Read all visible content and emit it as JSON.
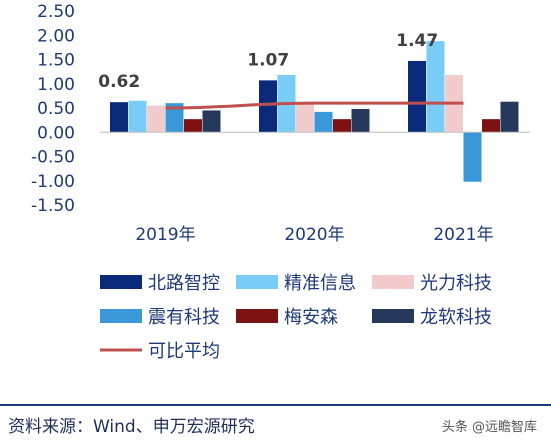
{
  "chart_data": {
    "type": "bar",
    "categories": [
      "2019年",
      "2020年",
      "2021年"
    ],
    "series": [
      {
        "name": "北路智控",
        "values": [
          0.62,
          1.07,
          1.47
        ],
        "color": "#0b2a7a"
      },
      {
        "name": "精准信息",
        "values": [
          0.65,
          1.18,
          1.88
        ],
        "color": "#79ccf5"
      },
      {
        "name": "光力科技",
        "values": [
          0.55,
          0.62,
          1.18
        ],
        "color": "#f2cccc"
      },
      {
        "name": "震有科技",
        "values": [
          0.6,
          0.42,
          -1.02
        ],
        "color": "#3a97d8"
      },
      {
        "name": "梅安森",
        "values": [
          0.27,
          0.27,
          0.27
        ],
        "color": "#7d1212"
      },
      {
        "name": "龙软科技",
        "values": [
          0.45,
          0.48,
          0.63
        ],
        "color": "#26395c"
      }
    ],
    "line_series": {
      "name": "可比平均",
      "values": [
        0.5,
        0.6,
        0.6
      ],
      "color": "#c0504d"
    },
    "data_labels": [
      {
        "series": "北路智控",
        "category": "2019年",
        "text": "0.62"
      },
      {
        "series": "北路智控",
        "category": "2020年",
        "text": "1.07"
      },
      {
        "series": "北路智控",
        "category": "2021年",
        "text": "1.47"
      }
    ],
    "yticks": [
      "2.50",
      "2.00",
      "1.50",
      "1.00",
      "0.50",
      "0.00",
      "-0.50",
      "-1.00",
      "-1.50"
    ],
    "ylim": [
      -1.5,
      2.5
    ],
    "legend_position": "bottom"
  },
  "source_text": "资料来源：Wind、申万宏源研究",
  "watermark_text": "头条 @远瞻智库"
}
